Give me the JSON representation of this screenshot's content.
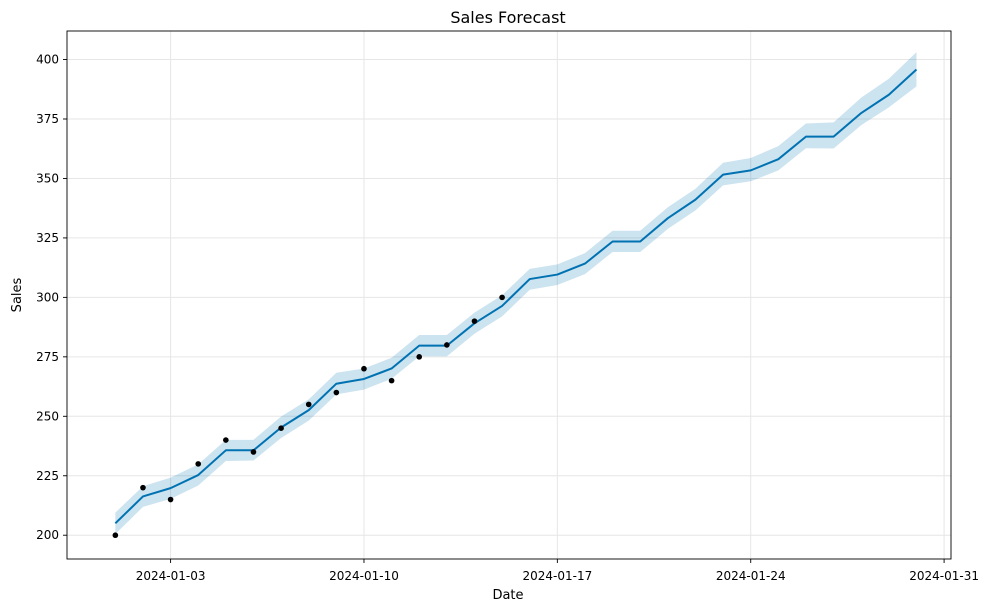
{
  "chart_data": {
    "type": "line",
    "title": "Sales Forecast",
    "xlabel": "Date",
    "ylabel": "Sales",
    "x_start": "2024-01-01",
    "x_end": "2024-01-30",
    "xlim": [
      "2023-12-30T06:00",
      "2024-01-31T06:00"
    ],
    "ylim": [
      190,
      412
    ],
    "x_ticks": [
      "2024-01-03",
      "2024-01-10",
      "2024-01-17",
      "2024-01-24",
      "2024-01-31"
    ],
    "y_ticks": [
      200,
      225,
      250,
      275,
      300,
      325,
      350,
      375,
      400
    ],
    "grid": true,
    "colors": {
      "forecast_line": "#0072B2",
      "interval_fill": "#0072B2",
      "actual_points": "#000000",
      "grid": "#e6e6e6"
    },
    "series": [
      {
        "kind": "actual",
        "x": [
          "2024-01-01",
          "2024-01-02",
          "2024-01-03",
          "2024-01-04",
          "2024-01-05",
          "2024-01-06",
          "2024-01-07",
          "2024-01-08",
          "2024-01-09",
          "2024-01-10",
          "2024-01-11",
          "2024-01-12",
          "2024-01-13",
          "2024-01-14",
          "2024-01-15"
        ],
        "values": [
          200,
          220,
          215,
          230,
          240,
          235,
          245,
          255,
          260,
          270,
          265,
          275,
          280,
          290,
          300
        ]
      },
      {
        "kind": "forecast",
        "x": [
          "2024-01-01",
          "2024-01-02",
          "2024-01-03",
          "2024-01-04",
          "2024-01-05",
          "2024-01-06",
          "2024-01-07",
          "2024-01-08",
          "2024-01-09",
          "2024-01-10",
          "2024-01-11",
          "2024-01-12",
          "2024-01-13",
          "2024-01-14",
          "2024-01-15",
          "2024-01-16",
          "2024-01-17",
          "2024-01-18",
          "2024-01-19",
          "2024-01-20",
          "2024-01-21",
          "2024-01-22",
          "2024-01-23",
          "2024-01-24",
          "2024-01-25",
          "2024-01-26",
          "2024-01-27",
          "2024-01-28",
          "2024-01-29",
          "2024-01-30"
        ],
        "values": [
          205,
          216.3,
          219.8,
          225.3,
          235.7,
          235.7,
          245.3,
          252.6,
          263.7,
          265.7,
          270.1,
          279.7,
          279.7,
          289.1,
          296.4,
          307.7,
          309.6,
          314.2,
          323.5,
          323.5,
          333.3,
          341.1,
          351.6,
          353.4,
          358.1,
          367.6,
          367.6,
          377.5,
          385.2,
          395.8
        ],
        "lower": [
          200.5,
          211.9,
          215.3,
          220.9,
          231.2,
          231.4,
          240.9,
          248.2,
          259.2,
          261.2,
          265.8,
          275.2,
          275.2,
          284.7,
          292.0,
          303.2,
          305.2,
          309.8,
          319.1,
          319.1,
          328.8,
          336.6,
          347.1,
          348.8,
          353.4,
          362.7,
          362.6,
          372.4,
          379.9,
          388.7
        ],
        "upper": [
          209.5,
          220.6,
          224.2,
          229.8,
          240.1,
          240.1,
          249.9,
          257.1,
          268.3,
          270.1,
          274.6,
          284.2,
          284.2,
          293.6,
          300.9,
          312.0,
          313.9,
          318.6,
          328.0,
          328.0,
          337.9,
          345.7,
          356.6,
          358.6,
          363.6,
          373.1,
          373.6,
          384.0,
          391.9,
          403.1
        ]
      }
    ]
  }
}
